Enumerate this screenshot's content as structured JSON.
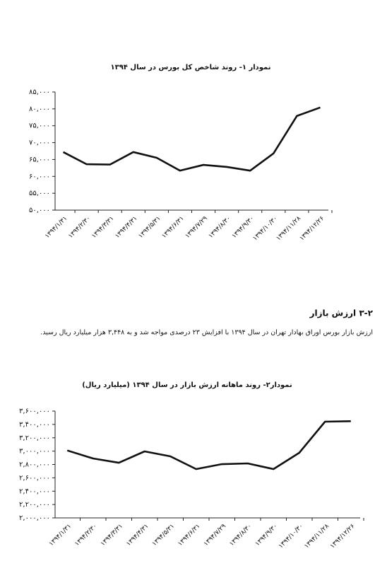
{
  "chart_data": [
    {
      "type": "line",
      "title": "نمودار ۱- روند شاخص کل بورس در سال ۱۳۹۴",
      "categories": [
        "۱۳۹۴/۱/۳۱",
        "۱۳۹۴/۲/۳۰",
        "۱۳۹۴/۳/۳۱",
        "۱۳۹۴/۴/۳۱",
        "۱۳۹۴/۵/۳۱",
        "۱۳۹۴/۶/۳۱",
        "۱۳۹۴/۷/۲۹",
        "۱۳۹۴/۸/۳۰",
        "۱۳۹۴/۹/۳۰",
        "۱۳۹۴/۱۰/۳۰",
        "۱۳۹۴/۱۱/۲۸",
        "۱۳۹۴/۱۲/۲۶"
      ],
      "values": [
        67200,
        63600,
        63500,
        67200,
        65500,
        61700,
        63400,
        62800,
        61700,
        66800,
        77900,
        80400
      ],
      "color": "#111111",
      "ylim": [
        50000,
        85000
      ],
      "yticks": [
        {
          "value": 50000,
          "label": "۵۰,۰۰۰"
        },
        {
          "value": 55000,
          "label": "۵۵,۰۰۰"
        },
        {
          "value": 60000,
          "label": "۶۰,۰۰۰"
        },
        {
          "value": 65000,
          "label": "۶۵,۰۰۰"
        },
        {
          "value": 70000,
          "label": "۷۰,۰۰۰"
        },
        {
          "value": 75000,
          "label": "۷۵,۰۰۰"
        },
        {
          "value": 80000,
          "label": "۸۰,۰۰۰"
        },
        {
          "value": 85000,
          "label": "۸۵,۰۰۰"
        }
      ],
      "grid": false
    },
    {
      "type": "line",
      "title": "نمودار۲- روند ماهانه ارزش بازار در سال ۱۳۹۴ (میلیارد ریال)",
      "categories": [
        "۱۳۹۴/۱/۳۱",
        "۱۳۹۴/۲/۳۰",
        "۱۳۹۴/۳/۳۱",
        "۱۳۹۴/۴/۳۱",
        "۱۳۹۴/۵/۳۱",
        "۱۳۹۴/۶/۳۱",
        "۱۳۹۴/۷/۲۹",
        "۱۳۹۴/۸/۳۰",
        "۱۳۹۴/۹/۳۰",
        "۱۳۹۴/۱۰/۳۰",
        "۱۳۹۴/۱۱/۲۸",
        "۱۳۹۴/۱۲/۲۶"
      ],
      "values": [
        3010000,
        2890000,
        2826000,
        2996000,
        2922000,
        2731000,
        2805000,
        2816000,
        2731000,
        2975000,
        3441000,
        3448000
      ],
      "color": "#111111",
      "ylim": [
        2000000,
        3600000
      ],
      "yticks": [
        {
          "value": 2000000,
          "label": "۲,۰۰۰,۰۰۰"
        },
        {
          "value": 2200000,
          "label": "۲,۲۰۰,۰۰۰"
        },
        {
          "value": 2400000,
          "label": "۲,۴۰۰,۰۰۰"
        },
        {
          "value": 2600000,
          "label": "۲,۶۰۰,۰۰۰"
        },
        {
          "value": 2800000,
          "label": "۲,۸۰۰,۰۰۰"
        },
        {
          "value": 3000000,
          "label": "۳,۰۰۰,۰۰۰"
        },
        {
          "value": 3200000,
          "label": "۳,۲۰۰,۰۰۰"
        },
        {
          "value": 3400000,
          "label": "۳,۴۰۰,۰۰۰"
        },
        {
          "value": 3600000,
          "label": "۳,۶۰۰,۰۰۰"
        }
      ],
      "grid": false
    }
  ],
  "section": {
    "heading": "۳-۲ ارزش بازار",
    "text": "ارزش بازار بورس اوراق بهادار تهران در سال ۱۳۹۴ با افزایش ۲۳ درصدی مواجه شد و به ۳,۴۴۸ هزار میلیارد ریال رسید."
  }
}
